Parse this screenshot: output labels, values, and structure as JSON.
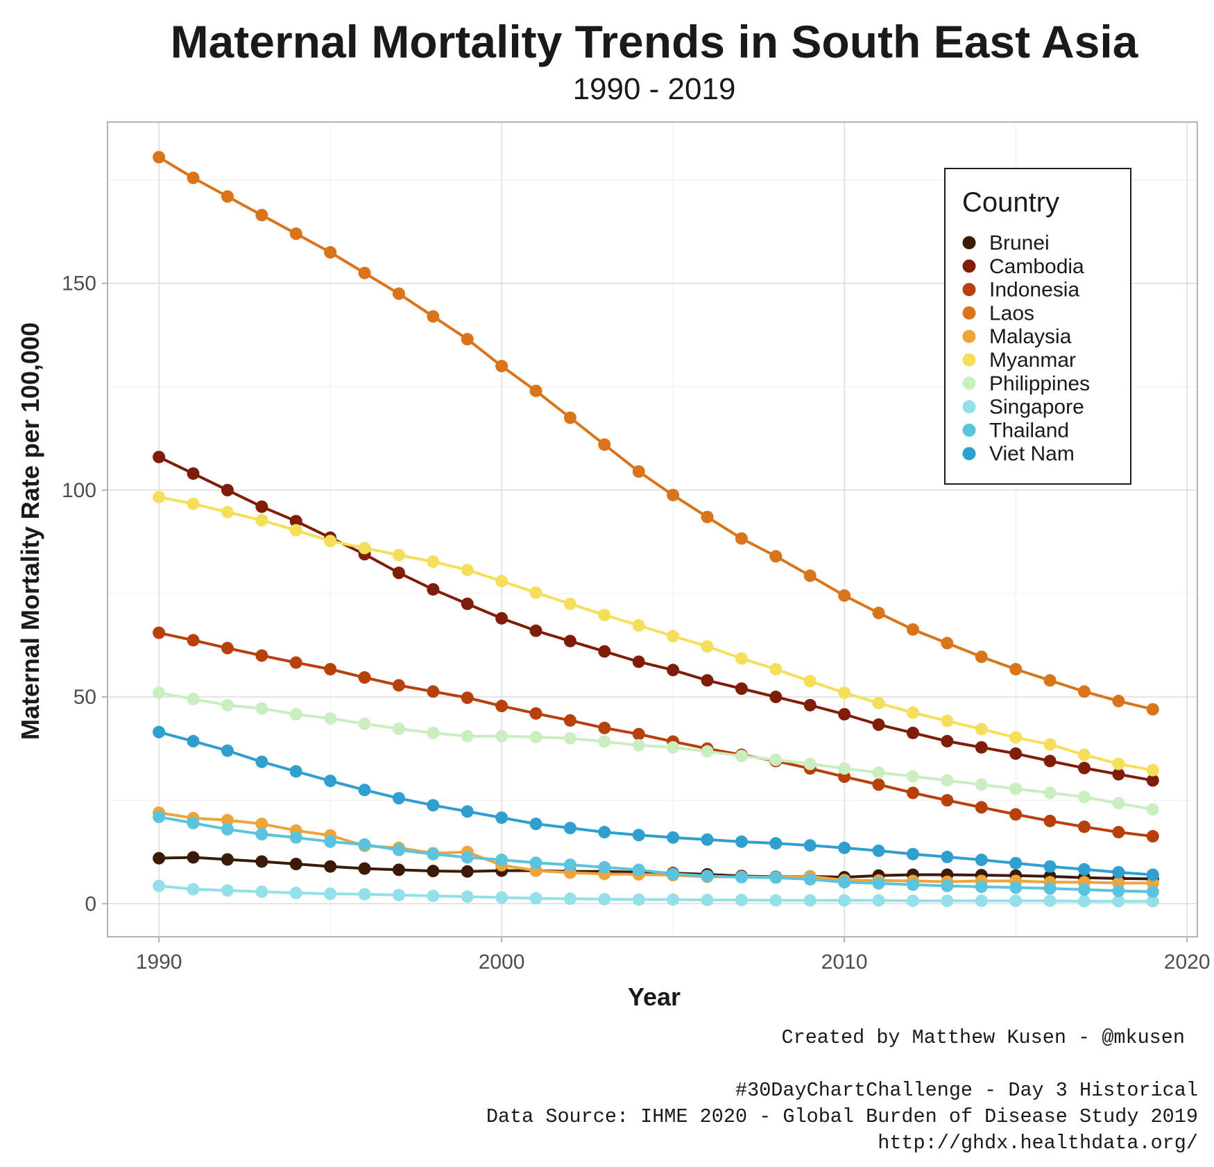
{
  "chart_data": {
    "type": "line",
    "title": "Maternal Mortality Trends in South East Asia",
    "subtitle": "1990 - 2019",
    "xlabel": "Year",
    "ylabel": "Maternal Mortality Rate per 100,000",
    "xlim": [
      1988.5,
      2020.3
    ],
    "ylim": [
      -8,
      189
    ],
    "x_ticks": [
      1990,
      2000,
      2010,
      2020
    ],
    "y_ticks": [
      0,
      50,
      100,
      150
    ],
    "grid": true,
    "legend": {
      "title": "Country",
      "placement": "top-right"
    },
    "x": [
      1990,
      1991,
      1992,
      1993,
      1994,
      1995,
      1996,
      1997,
      1998,
      1999,
      2000,
      2001,
      2002,
      2003,
      2004,
      2005,
      2006,
      2007,
      2008,
      2009,
      2010,
      2011,
      2012,
      2013,
      2014,
      2015,
      2016,
      2017,
      2018,
      2019
    ],
    "series": [
      {
        "name": "Brunei",
        "color": "#3b1a08",
        "values": [
          11,
          11.2,
          10.7,
          10.2,
          9.6,
          9,
          8.5,
          8.2,
          7.9,
          7.8,
          8,
          8,
          7.8,
          7.8,
          7.6,
          7.4,
          7.1,
          6.7,
          6.5,
          6.6,
          6.4,
          6.8,
          7,
          7,
          6.9,
          6.8,
          6.6,
          6.3,
          6.1,
          6
        ]
      },
      {
        "name": "Cambodia",
        "color": "#7f1d09",
        "values": [
          108,
          104,
          100,
          96,
          92.5,
          88.5,
          84.5,
          80,
          76,
          72.5,
          69,
          66,
          63.5,
          61,
          58.5,
          56.5,
          54,
          52,
          50,
          48,
          45.8,
          43.3,
          41.3,
          39.3,
          37.8,
          36.3,
          34.5,
          32.8,
          31.3,
          29.8
        ]
      },
      {
        "name": "Indonesia",
        "color": "#b8400a",
        "values": [
          65.5,
          63.7,
          61.8,
          60,
          58.3,
          56.7,
          54.7,
          52.8,
          51.3,
          49.8,
          47.8,
          46,
          44.3,
          42.5,
          41,
          39.2,
          37.5,
          36,
          34.5,
          32.7,
          30.7,
          28.8,
          26.8,
          25,
          23.3,
          21.6,
          20,
          18.6,
          17.3,
          16.3
        ]
      },
      {
        "name": "Laos",
        "color": "#d9741a",
        "values": [
          180.5,
          175.5,
          171,
          166.5,
          162,
          157.5,
          152.5,
          147.5,
          142,
          136.5,
          130,
          124,
          117.5,
          111,
          104.5,
          98.8,
          93.5,
          88.3,
          84,
          79.3,
          74.5,
          70.3,
          66.3,
          63,
          59.7,
          56.7,
          54,
          51.3,
          49,
          47
        ]
      },
      {
        "name": "Malaysia",
        "color": "#eda43a",
        "values": [
          22,
          20.7,
          20.2,
          19.3,
          17.7,
          16.5,
          14,
          13.5,
          12.2,
          12.5,
          9.3,
          8,
          7.5,
          7.2,
          7.1,
          6.9,
          6.5,
          6.5,
          6.4,
          6.6,
          5.7,
          5.6,
          5.5,
          5.3,
          5.5,
          5.5,
          5.2,
          5.2,
          5,
          5
        ]
      },
      {
        "name": "Myanmar",
        "color": "#f5df5a",
        "values": [
          98.3,
          96.7,
          94.7,
          92.7,
          90.3,
          87.7,
          86,
          84.3,
          82.7,
          80.7,
          78,
          75.2,
          72.5,
          69.8,
          67.3,
          64.7,
          62.2,
          59.3,
          56.7,
          53.8,
          51,
          48.5,
          46.2,
          44.2,
          42.2,
          40.2,
          38.5,
          36,
          33.8,
          32.3
        ]
      },
      {
        "name": "Philippines",
        "color": "#cbeec0",
        "values": [
          51,
          49.5,
          48,
          47.2,
          45.8,
          44.8,
          43.5,
          42.3,
          41.3,
          40.5,
          40.5,
          40.3,
          40,
          39.2,
          38.3,
          37.8,
          36.8,
          35.7,
          34.8,
          33.8,
          32.7,
          31.7,
          30.8,
          29.8,
          28.8,
          27.8,
          26.8,
          25.8,
          24.3,
          22.8
        ]
      },
      {
        "name": "Singapore",
        "color": "#94e0e8",
        "values": [
          4.3,
          3.5,
          3.2,
          2.9,
          2.6,
          2.4,
          2.3,
          2.1,
          1.9,
          1.7,
          1.5,
          1.3,
          1.2,
          1.1,
          1,
          1,
          0.9,
          0.9,
          0.8,
          0.8,
          0.8,
          0.8,
          0.7,
          0.7,
          0.7,
          0.7,
          0.7,
          0.6,
          0.6,
          0.6
        ]
      },
      {
        "name": "Thailand",
        "color": "#5cc3de",
        "values": [
          21,
          19.5,
          18,
          16.8,
          16,
          15,
          14.3,
          13,
          12,
          11.2,
          10.6,
          9.9,
          9.4,
          8.8,
          8.2,
          7.2,
          6.7,
          6.4,
          6.3,
          5.9,
          5.2,
          4.9,
          4.6,
          4.3,
          4.1,
          3.9,
          3.7,
          3.4,
          3.1,
          2.9
        ]
      },
      {
        "name": "Viet Nam",
        "color": "#2e9fcf",
        "values": [
          41.5,
          39.3,
          37,
          34.3,
          32,
          29.7,
          27.5,
          25.5,
          23.8,
          22.3,
          20.8,
          19.3,
          18.3,
          17.3,
          16.6,
          16,
          15.5,
          15,
          14.6,
          14.1,
          13.5,
          12.8,
          12,
          11.3,
          10.6,
          9.8,
          9,
          8.3,
          7.6,
          7
        ]
      }
    ]
  },
  "caption": {
    "line1": "Created by Matthew Kusen - @mkusen",
    "line2": "#30DayChartChallenge - Day 3 Historical",
    "line3": "Data Source: IHME 2020 - Global Burden of Disease Study 2019",
    "line4": "http://ghdx.healthdata.org/"
  }
}
